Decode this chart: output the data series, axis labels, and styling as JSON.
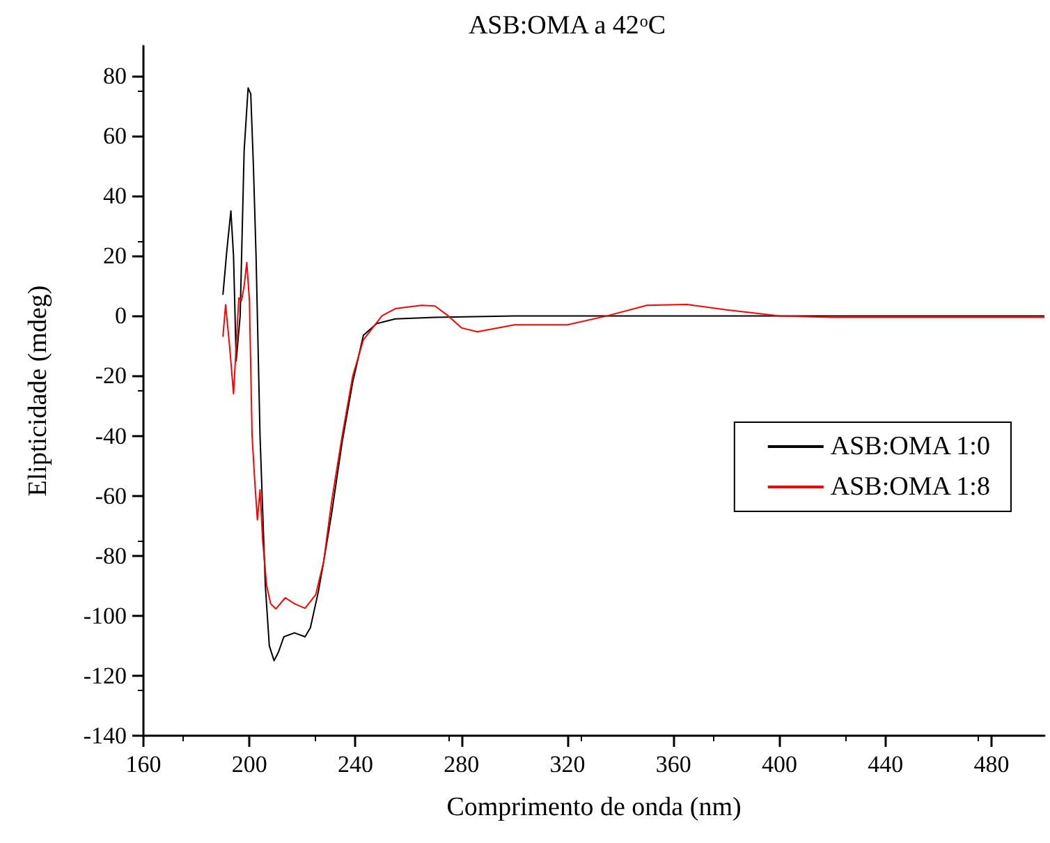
{
  "chart_data": {
    "type": "line",
    "title": "ASB:OMA a 42$^{o}$C",
    "xlabel": "Comprimento de onda (nm)",
    "ylabel": "Elipticidade (mdeg)",
    "xlim": [
      160,
      500
    ],
    "xticks": [
      160,
      200,
      240,
      280,
      320,
      360,
      400,
      440,
      480
    ],
    "ylim": [
      -140,
      90
    ],
    "yticks": [
      -140,
      -120,
      -100,
      -80,
      -60,
      -40,
      -20,
      0,
      20,
      40,
      60,
      80
    ],
    "grid": false,
    "legend": "right",
    "marker": "none",
    "line_style": "solid",
    "series": [
      {
        "name": "ASB:OMA 1:0",
        "color": "#000000",
        "x": [
          190,
          191.5,
          193,
          194,
          195,
          196.5,
          198,
          199.5,
          200.5,
          201.5,
          202.5,
          204,
          206,
          207.5,
          209.3,
          211,
          213,
          217,
          221,
          223,
          226,
          228,
          231,
          235,
          239,
          243,
          248,
          255,
          270,
          300,
          340,
          380,
          420,
          460,
          500
        ],
        "values": [
          7,
          22,
          35,
          20,
          -15,
          0,
          55,
          76,
          74,
          50,
          20,
          -40,
          -90,
          -110,
          -115,
          -112,
          -107,
          -105.7,
          -107,
          -104,
          -92,
          -82,
          -66,
          -42,
          -22,
          -6.5,
          -2.6,
          -1,
          -0.5,
          0,
          0,
          0,
          0,
          0,
          0
        ]
      },
      {
        "name": "ASB:OMA 1:8",
        "color": "#ff0000",
        "x": [
          190,
          191,
          192.5,
          194,
          195,
          196,
          197,
          198,
          199,
          200,
          201,
          202,
          203,
          204,
          205,
          206.5,
          208,
          210,
          213.5,
          217,
          221,
          225,
          228,
          231,
          235,
          239,
          243,
          250,
          255,
          265,
          270,
          275,
          280,
          286,
          300,
          320,
          335,
          350,
          365,
          380,
          400,
          420,
          460,
          500
        ],
        "values": [
          -7,
          3.7,
          -10,
          -26,
          -10,
          6,
          5,
          10,
          17.8,
          5,
          -40,
          -55,
          -68,
          -58,
          -75,
          -90,
          -96,
          -97.7,
          -94,
          -96,
          -97.5,
          -93,
          -82,
          -62,
          -40,
          -20,
          -8,
          0,
          2.4,
          3.5,
          3.3,
          0,
          -4,
          -5.3,
          -3,
          -3,
          0,
          3.5,
          3.8,
          2,
          0,
          -0.5,
          -0.5,
          -0.5
        ]
      }
    ]
  }
}
